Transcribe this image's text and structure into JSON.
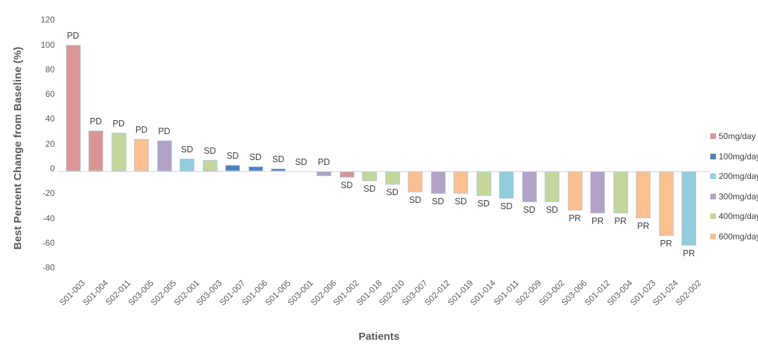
{
  "chart": {
    "y_axis_title": "Best Percent Change from Baseline (%)",
    "x_axis_title": "Patients"
  },
  "legend": {
    "position": "right",
    "items": [
      {
        "label": "50mg/day",
        "color": "#d99694"
      },
      {
        "label": "100mg/day",
        "color": "#4f81bd"
      },
      {
        "label": "200mg/day",
        "color": "#92cddc"
      },
      {
        "label": "300mg/day",
        "color": "#b2a2c7"
      },
      {
        "label": "400mg/day",
        "color": "#c3d69b"
      },
      {
        "label": "600mg/day",
        "color": "#fac08f"
      }
    ]
  },
  "chart_data": {
    "type": "bar",
    "subtype": "waterfall",
    "title": "",
    "xlabel": "Patients",
    "ylabel": "Best Percent Change from Baseline (%)",
    "ylim": [
      -80,
      120
    ],
    "y_ticks": [
      120,
      100,
      80,
      60,
      40,
      20,
      0,
      -20,
      -40,
      -60,
      -80
    ],
    "grid": false,
    "legend_position": "right",
    "bar_border_color": "#b9cde5",
    "categories": [
      "S01-003",
      "S01-004",
      "S02-011",
      "S03-005",
      "S02-005",
      "S02-001",
      "S03-003",
      "S01-007",
      "S01-006",
      "S01-005",
      "S03-001",
      "S02-006",
      "S01-002",
      "S01-018",
      "S02-010",
      "S03-007",
      "S02-012",
      "S01-019",
      "S01-014",
      "S01-011",
      "S02-009",
      "S03-002",
      "S03-006",
      "S01-012",
      "S03-004",
      "S01-023",
      "S01-024",
      "S02-002"
    ],
    "values": [
      102,
      33,
      31,
      26,
      25,
      10,
      9,
      5,
      4,
      2,
      0,
      -4,
      -5,
      -8,
      -11,
      -17,
      -18,
      -18,
      -20,
      -22,
      -25,
      -25,
      -32,
      -34,
      -34,
      -38,
      -52,
      -60
    ],
    "responses": [
      "PD",
      "PD",
      "PD",
      "PD",
      "PD",
      "SD",
      "SD",
      "SD",
      "SD",
      "SD",
      "SD",
      "PD",
      "SD",
      "SD",
      "SD",
      "SD",
      "SD",
      "SD",
      "SD",
      "SD",
      "SD",
      "SD",
      "PR",
      "PR",
      "PR",
      "PR",
      "PR",
      "PR"
    ],
    "doses": [
      "50mg/day",
      "50mg/day",
      "400mg/day",
      "600mg/day",
      "300mg/day",
      "200mg/day",
      "400mg/day",
      "100mg/day",
      "100mg/day",
      "100mg/day",
      null,
      "300mg/day",
      "50mg/day",
      "400mg/day",
      "400mg/day",
      "600mg/day",
      "300mg/day",
      "600mg/day",
      "400mg/day",
      "200mg/day",
      "300mg/day",
      "400mg/day",
      "600mg/day",
      "300mg/day",
      "400mg/day",
      "600mg/day",
      "600mg/day",
      "200mg/day"
    ]
  }
}
